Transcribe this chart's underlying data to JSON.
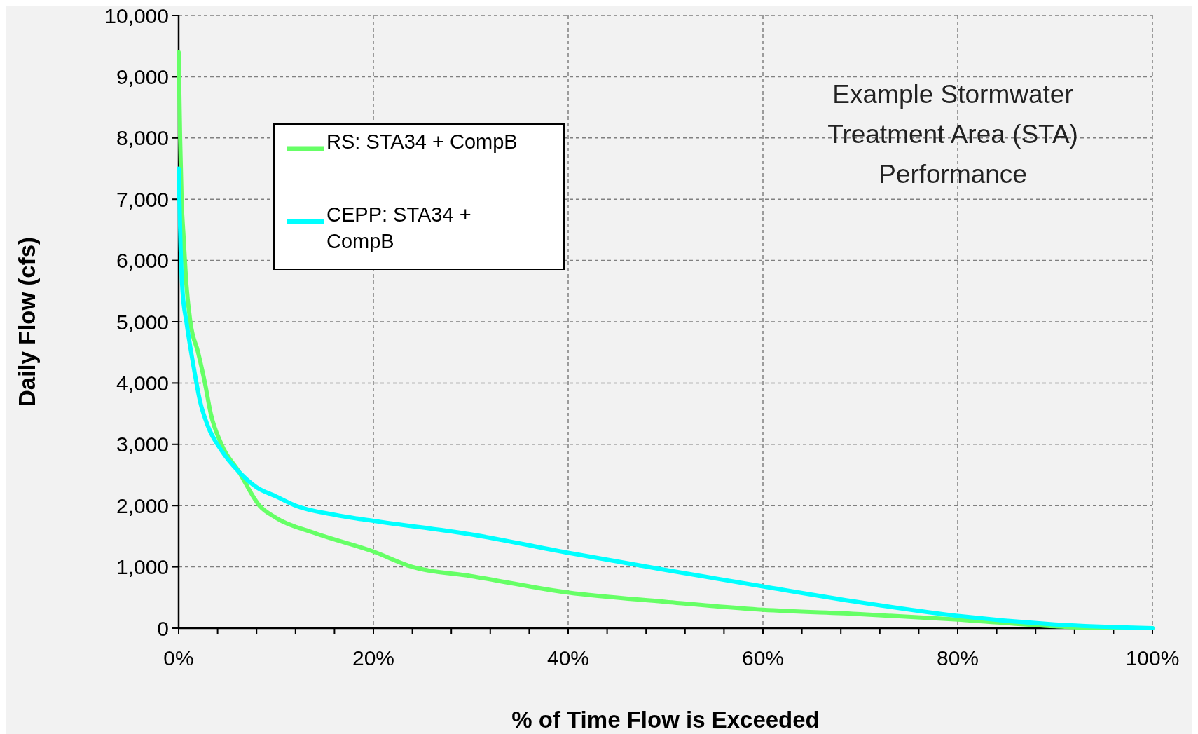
{
  "chart_data": {
    "type": "line",
    "xlabel": "% of Time Flow is Exceeded",
    "ylabel": "Daily Flow (cfs)",
    "annotations": [
      "Example Stormwater Treatment Area (STA) Performance"
    ],
    "xlim": [
      0,
      100
    ],
    "ylim": [
      0,
      10000
    ],
    "xticks": [
      {
        "value": 0,
        "label": "0%"
      },
      {
        "value": 4,
        "label": null
      },
      {
        "value": 8,
        "label": null
      },
      {
        "value": 12,
        "label": null
      },
      {
        "value": 16,
        "label": null
      },
      {
        "value": 20,
        "label": "20%"
      },
      {
        "value": 24,
        "label": null
      },
      {
        "value": 28,
        "label": null
      },
      {
        "value": 32,
        "label": null
      },
      {
        "value": 36,
        "label": null
      },
      {
        "value": 40,
        "label": "40%"
      },
      {
        "value": 44,
        "label": null
      },
      {
        "value": 48,
        "label": null
      },
      {
        "value": 52,
        "label": null
      },
      {
        "value": 56,
        "label": null
      },
      {
        "value": 60,
        "label": "60%"
      },
      {
        "value": 64,
        "label": null
      },
      {
        "value": 68,
        "label": null
      },
      {
        "value": 72,
        "label": null
      },
      {
        "value": 76,
        "label": null
      },
      {
        "value": 80,
        "label": "80%"
      },
      {
        "value": 84,
        "label": null
      },
      {
        "value": 88,
        "label": null
      },
      {
        "value": 92,
        "label": null
      },
      {
        "value": 96,
        "label": null
      },
      {
        "value": 100,
        "label": "100%"
      }
    ],
    "yticks": [
      0,
      {
        "value": 1000,
        "label": "1,000"
      },
      {
        "value": 2000,
        "label": "2,000"
      },
      {
        "value": 3000,
        "label": "3,000"
      },
      {
        "value": 4000,
        "label": "4,000"
      },
      {
        "value": 5000,
        "label": "5,000"
      },
      {
        "value": 6000,
        "label": "6,000"
      },
      {
        "value": 7000,
        "label": "7,000"
      },
      {
        "value": 8000,
        "label": "8,000"
      },
      {
        "value": 9000,
        "label": "9,000"
      },
      {
        "value": 10000,
        "label": "10,000"
      }
    ],
    "grid": true,
    "legend": "top left",
    "marker": "none",
    "line_style": "solid",
    "series": [
      {
        "name": "RS: STA34 + CompB",
        "color": "#66ff66",
        "x": [
          0,
          0.15,
          0.3,
          0.5,
          0.8,
          1.2,
          2,
          2.7,
          3.3,
          4.4,
          6.2,
          8.3,
          10,
          14,
          20,
          24,
          30,
          40,
          50,
          60,
          70,
          80,
          90,
          95,
          100
        ],
        "values": [
          9400,
          8000,
          7000,
          6400,
          5600,
          5000,
          4500,
          4000,
          3500,
          3000,
          2550,
          2000,
          1800,
          1550,
          1250,
          1000,
          850,
          580,
          430,
          300,
          230,
          140,
          30,
          0,
          0
        ]
      },
      {
        "name": "CEPP: STA34 + CompB",
        "color": "#00ffff",
        "x": [
          0,
          0.2,
          0.4,
          0.8,
          1.5,
          2.2,
          3,
          4.4,
          6.2,
          8,
          10,
          12,
          16,
          20,
          30,
          40,
          50,
          60,
          70,
          80,
          90,
          100
        ],
        "values": [
          7500,
          6200,
          5500,
          5000,
          4300,
          3700,
          3300,
          2900,
          2550,
          2300,
          2150,
          2000,
          1850,
          1750,
          1530,
          1230,
          950,
          680,
          420,
          200,
          60,
          0
        ]
      }
    ]
  }
}
